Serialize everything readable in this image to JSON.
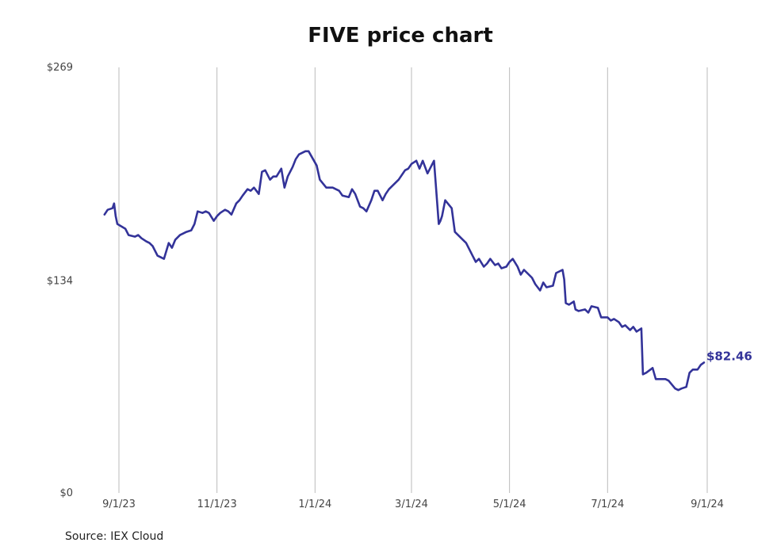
{
  "chart_data": {
    "type": "line",
    "title": "FIVE price chart",
    "source": "Source: IEX Cloud",
    "ylim": [
      0,
      269
    ],
    "y_ticks": [
      {
        "value": 0,
        "label": "$0"
      },
      {
        "value": 134,
        "label": "$134"
      },
      {
        "value": 269,
        "label": "$269"
      }
    ],
    "x_ticks": [
      {
        "value": "2023-09-01",
        "label": "9/1/23"
      },
      {
        "value": "2023-11-01",
        "label": "11/1/23"
      },
      {
        "value": "2024-01-01",
        "label": "1/1/24"
      },
      {
        "value": "2024-03-01",
        "label": "3/1/24"
      },
      {
        "value": "2024-05-01",
        "label": "5/1/24"
      },
      {
        "value": "2024-07-01",
        "label": "7/1/24"
      },
      {
        "value": "2024-09-01",
        "label": "9/1/24"
      }
    ],
    "grid": "vertical",
    "line_color": "#333399",
    "end_label": "$82.46",
    "series": [
      {
        "points": [
          [
            "2023-08-23",
            176
          ],
          [
            "2023-08-25",
            179
          ],
          [
            "2023-08-28",
            180
          ],
          [
            "2023-08-29",
            183
          ],
          [
            "2023-08-30",
            175
          ],
          [
            "2023-08-31",
            170
          ],
          [
            "2023-09-05",
            167
          ],
          [
            "2023-09-07",
            163
          ],
          [
            "2023-09-11",
            162
          ],
          [
            "2023-09-13",
            163
          ],
          [
            "2023-09-15",
            161
          ],
          [
            "2023-09-18",
            159
          ],
          [
            "2023-09-20",
            158
          ],
          [
            "2023-09-22",
            156
          ],
          [
            "2023-09-25",
            150
          ],
          [
            "2023-09-27",
            149
          ],
          [
            "2023-09-29",
            148
          ],
          [
            "2023-10-02",
            158
          ],
          [
            "2023-10-04",
            155
          ],
          [
            "2023-10-06",
            160
          ],
          [
            "2023-10-09",
            163
          ],
          [
            "2023-10-11",
            164
          ],
          [
            "2023-10-13",
            165
          ],
          [
            "2023-10-16",
            166
          ],
          [
            "2023-10-18",
            170
          ],
          [
            "2023-10-20",
            178
          ],
          [
            "2023-10-23",
            177
          ],
          [
            "2023-10-25",
            178
          ],
          [
            "2023-10-27",
            177
          ],
          [
            "2023-10-30",
            172
          ],
          [
            "2023-11-01",
            175
          ],
          [
            "2023-11-03",
            177
          ],
          [
            "2023-11-06",
            179
          ],
          [
            "2023-11-08",
            178
          ],
          [
            "2023-11-10",
            176
          ],
          [
            "2023-11-13",
            183
          ],
          [
            "2023-11-15",
            185
          ],
          [
            "2023-11-17",
            188
          ],
          [
            "2023-11-20",
            192
          ],
          [
            "2023-11-22",
            191
          ],
          [
            "2023-11-24",
            193
          ],
          [
            "2023-11-27",
            189
          ],
          [
            "2023-11-29",
            203
          ],
          [
            "2023-12-01",
            204
          ],
          [
            "2023-12-04",
            198
          ],
          [
            "2023-12-06",
            200
          ],
          [
            "2023-12-08",
            200
          ],
          [
            "2023-12-11",
            205
          ],
          [
            "2023-12-13",
            193
          ],
          [
            "2023-12-15",
            200
          ],
          [
            "2023-12-18",
            206
          ],
          [
            "2023-12-20",
            211
          ],
          [
            "2023-12-22",
            214
          ],
          [
            "2023-12-26",
            216
          ],
          [
            "2023-12-28",
            216
          ],
          [
            "2024-01-02",
            207
          ],
          [
            "2024-01-04",
            198
          ],
          [
            "2024-01-08",
            193
          ],
          [
            "2024-01-10",
            193
          ],
          [
            "2024-01-12",
            193
          ],
          [
            "2024-01-16",
            191
          ],
          [
            "2024-01-18",
            188
          ],
          [
            "2024-01-22",
            187
          ],
          [
            "2024-01-24",
            192
          ],
          [
            "2024-01-26",
            189
          ],
          [
            "2024-01-29",
            181
          ],
          [
            "2024-01-31",
            180
          ],
          [
            "2024-02-02",
            178
          ],
          [
            "2024-02-05",
            185
          ],
          [
            "2024-02-07",
            191
          ],
          [
            "2024-02-09",
            191
          ],
          [
            "2024-02-12",
            185
          ],
          [
            "2024-02-14",
            189
          ],
          [
            "2024-02-16",
            192
          ],
          [
            "2024-02-20",
            196
          ],
          [
            "2024-02-22",
            198
          ],
          [
            "2024-02-26",
            204
          ],
          [
            "2024-02-28",
            205
          ],
          [
            "2024-03-01",
            208
          ],
          [
            "2024-03-04",
            210
          ],
          [
            "2024-03-06",
            205
          ],
          [
            "2024-03-08",
            210
          ],
          [
            "2024-03-11",
            202
          ],
          [
            "2024-03-13",
            206
          ],
          [
            "2024-03-15",
            210
          ],
          [
            "2024-03-18",
            170
          ],
          [
            "2024-03-19",
            172
          ],
          [
            "2024-03-20",
            175
          ],
          [
            "2024-03-22",
            185
          ],
          [
            "2024-03-26",
            180
          ],
          [
            "2024-03-28",
            165
          ],
          [
            "2024-04-02",
            160
          ],
          [
            "2024-04-04",
            158
          ],
          [
            "2024-04-08",
            150
          ],
          [
            "2024-04-10",
            146
          ],
          [
            "2024-04-12",
            148
          ],
          [
            "2024-04-15",
            143
          ],
          [
            "2024-04-17",
            145
          ],
          [
            "2024-04-19",
            148
          ],
          [
            "2024-04-22",
            144
          ],
          [
            "2024-04-24",
            145
          ],
          [
            "2024-04-26",
            142
          ],
          [
            "2024-04-29",
            143
          ],
          [
            "2024-05-01",
            146
          ],
          [
            "2024-05-03",
            148
          ],
          [
            "2024-05-06",
            143
          ],
          [
            "2024-05-08",
            138
          ],
          [
            "2024-05-10",
            141
          ],
          [
            "2024-05-13",
            138
          ],
          [
            "2024-05-15",
            136
          ],
          [
            "2024-05-17",
            132
          ],
          [
            "2024-05-20",
            128
          ],
          [
            "2024-05-22",
            133
          ],
          [
            "2024-05-24",
            130
          ],
          [
            "2024-05-28",
            131
          ],
          [
            "2024-05-30",
            139
          ],
          [
            "2024-06-03",
            141
          ],
          [
            "2024-06-04",
            135
          ],
          [
            "2024-06-05",
            120
          ],
          [
            "2024-06-07",
            119
          ],
          [
            "2024-06-10",
            121
          ],
          [
            "2024-06-11",
            116
          ],
          [
            "2024-06-13",
            115
          ],
          [
            "2024-06-17",
            116
          ],
          [
            "2024-06-19",
            114
          ],
          [
            "2024-06-21",
            118
          ],
          [
            "2024-06-25",
            117
          ],
          [
            "2024-06-27",
            111
          ],
          [
            "2024-07-01",
            111
          ],
          [
            "2024-07-03",
            109
          ],
          [
            "2024-07-05",
            110
          ],
          [
            "2024-07-08",
            108
          ],
          [
            "2024-07-10",
            105
          ],
          [
            "2024-07-12",
            106
          ],
          [
            "2024-07-15",
            103
          ],
          [
            "2024-07-17",
            105
          ],
          [
            "2024-07-19",
            102
          ],
          [
            "2024-07-22",
            104
          ],
          [
            "2024-07-23",
            75
          ],
          [
            "2024-07-25",
            76
          ],
          [
            "2024-07-29",
            79
          ],
          [
            "2024-07-31",
            72
          ],
          [
            "2024-08-02",
            72
          ],
          [
            "2024-08-06",
            72
          ],
          [
            "2024-08-08",
            71
          ],
          [
            "2024-08-12",
            66
          ],
          [
            "2024-08-14",
            65
          ],
          [
            "2024-08-16",
            66
          ],
          [
            "2024-08-19",
            67
          ],
          [
            "2024-08-21",
            76
          ],
          [
            "2024-08-23",
            78
          ],
          [
            "2024-08-26",
            78
          ],
          [
            "2024-08-28",
            81
          ],
          [
            "2024-08-30",
            82.46
          ]
        ]
      }
    ]
  }
}
